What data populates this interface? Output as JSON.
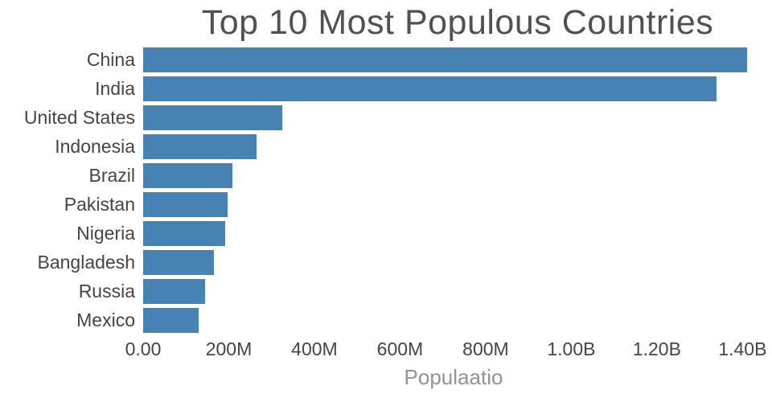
{
  "chart_data": {
    "type": "bar",
    "orientation": "horizontal",
    "title": "Top 10 Most Populous Countries",
    "xlabel": "Populaatio",
    "ylabel": "",
    "categories": [
      "China",
      "India",
      "United States",
      "Indonesia",
      "Brazil",
      "Pakistan",
      "Nigeria",
      "Bangladesh",
      "Russia",
      "Mexico"
    ],
    "values": [
      1410000000,
      1339000000,
      324000000,
      264000000,
      209000000,
      197000000,
      191000000,
      165000000,
      144000000,
      129000000
    ],
    "xlim": [
      0,
      1450000000
    ],
    "xticks": [
      {
        "value": 0,
        "label": "0.00"
      },
      {
        "value": 200000000,
        "label": "200M"
      },
      {
        "value": 400000000,
        "label": "400M"
      },
      {
        "value": 600000000,
        "label": "600M"
      },
      {
        "value": 800000000,
        "label": "800M"
      },
      {
        "value": 1000000000,
        "label": "1.00B"
      },
      {
        "value": 1200000000,
        "label": "1.20B"
      },
      {
        "value": 1400000000,
        "label": "1.40B"
      }
    ],
    "bar_color": "#4682b4",
    "grid": false,
    "legend": "none"
  }
}
